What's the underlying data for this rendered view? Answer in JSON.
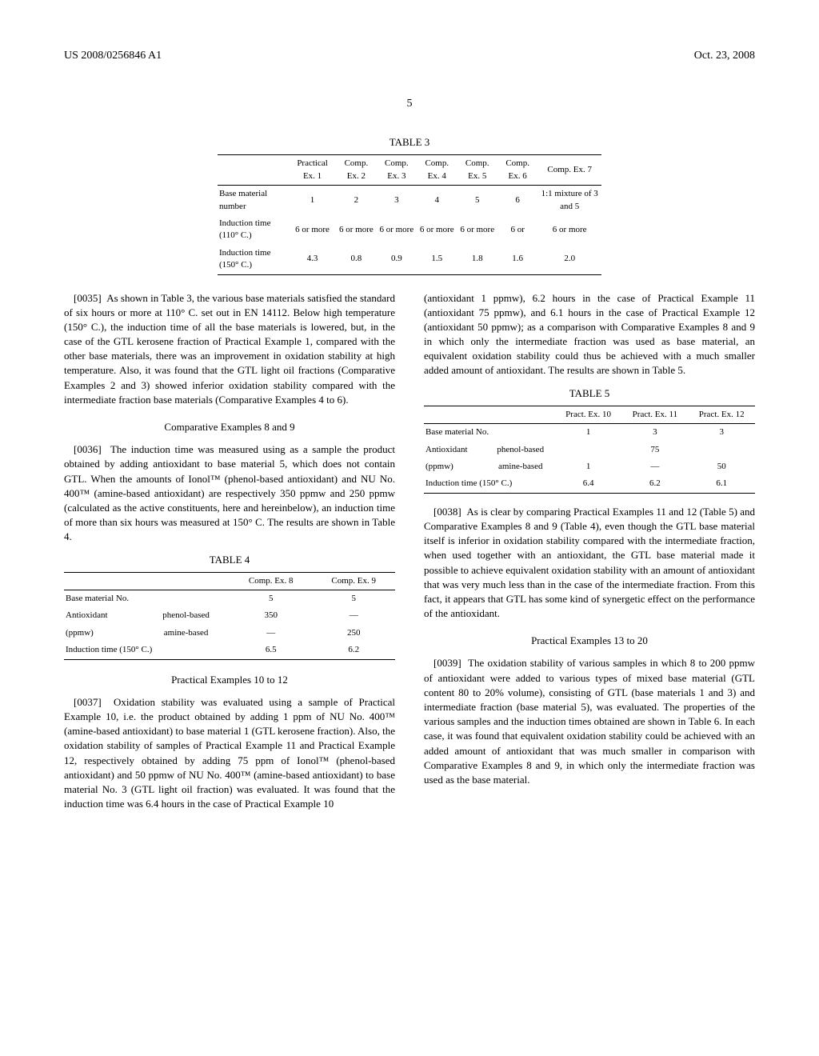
{
  "header": {
    "left": "US 2008/0256846 A1",
    "right": "Oct. 23, 2008"
  },
  "page_number": "5",
  "table3": {
    "title": "TABLE 3",
    "cols": [
      "",
      "Practical Ex. 1",
      "Comp. Ex. 2",
      "Comp. Ex. 3",
      "Comp. Ex. 4",
      "Comp. Ex. 5",
      "Comp. Ex. 6",
      "Comp. Ex. 7"
    ],
    "rows": [
      [
        "Base material number",
        "1",
        "2",
        "3",
        "4",
        "5",
        "6",
        "1:1 mixture of 3 and 5"
      ],
      [
        "Induction time (110° C.)",
        "6 or more",
        "6 or more",
        "6 or more",
        "6 or more",
        "6 or more",
        "6 or",
        "6 or more"
      ],
      [
        "Induction time (150° C.)",
        "4.3",
        "0.8",
        "0.9",
        "1.5",
        "1.8",
        "1.6",
        "2.0"
      ]
    ]
  },
  "p0035": {
    "num": "[0035]",
    "text": "As shown in Table 3, the various base materials satisfied the standard of six hours or more at 110° C. set out in EN 14112. Below high temperature (150° C.), the induction time of all the base materials is lowered, but, in the case of the GTL kerosene fraction of Practical Example 1, compared with the other base materials, there was an improvement in oxidation stability at high temperature. Also, it was found that the GTL light oil fractions (Comparative Examples 2 and 3) showed inferior oxidation stability compared with the intermediate fraction base materials (Comparative Examples 4 to 6)."
  },
  "sec_comp89": "Comparative Examples 8 and 9",
  "p0036": {
    "num": "[0036]",
    "text": "The induction time was measured using as a sample the product obtained by adding antioxidant to base material 5, which does not contain GTL. When the amounts of Ionol™ (phenol-based antioxidant) and NU No. 400™ (amine-based antioxidant) are respectively 350 ppmw and 250 ppmw (calculated as the active constituents, here and hereinbelow), an induction time of more than six hours was measured at 150° C. The results are shown in Table 4."
  },
  "table4": {
    "title": "TABLE 4",
    "cols": [
      "",
      "",
      "Comp. Ex. 8",
      "Comp. Ex. 9"
    ],
    "rows": [
      [
        "Base material No.",
        "",
        "5",
        "5"
      ],
      [
        "Antioxidant",
        "phenol-based",
        "350",
        "—"
      ],
      [
        "(ppmw)",
        "amine-based",
        "—",
        "250"
      ],
      [
        "Induction time (150° C.)",
        "",
        "6.5",
        "6.2"
      ]
    ]
  },
  "sec_pr10_12": "Practical Examples 10 to 12",
  "p0037": {
    "num": "[0037]",
    "text": "Oxidation stability was evaluated using a sample of Practical Example 10, i.e. the product obtained by adding 1 ppm of NU No. 400™ (amine-based antioxidant) to base material 1 (GTL kerosene fraction). Also, the oxidation stability of samples of Practical Example 11 and Practical Example 12, respectively obtained by adding 75 ppm of Ionol™ (phenol-based antioxidant) and 50 ppmw of NU No. 400™ (amine-based antioxidant) to base material No. 3 (GTL light oil fraction) was evaluated. It was found that the induction time was 6.4 hours in the case of Practical Example 10"
  },
  "p0037b": "(antioxidant 1 ppmw), 6.2 hours in the case of Practical Example 11 (antioxidant 75 ppmw), and 6.1 hours in the case of Practical Example 12 (antioxidant 50 ppmw); as a comparison with Comparative Examples 8 and 9 in which only the intermediate fraction was used as base material, an equivalent oxidation stability could thus be achieved with a much smaller added amount of antioxidant. The results are shown in Table 5.",
  "table5": {
    "title": "TABLE 5",
    "cols": [
      "",
      "",
      "Pract. Ex. 10",
      "Pract. Ex. 11",
      "Pract. Ex. 12"
    ],
    "rows": [
      [
        "Base material No.",
        "",
        "1",
        "3",
        "3"
      ],
      [
        "Antioxidant",
        "phenol-based",
        "",
        "75",
        ""
      ],
      [
        "(ppmw)",
        "amine-based",
        "1",
        "—",
        "50"
      ],
      [
        "Induction time (150° C.)",
        "",
        "6.4",
        "6.2",
        "6.1"
      ]
    ]
  },
  "p0038": {
    "num": "[0038]",
    "text": "As is clear by comparing Practical Examples 11 and 12 (Table 5) and Comparative Examples 8 and 9 (Table 4), even though the GTL base material itself is inferior in oxidation stability compared with the intermediate fraction, when used together with an antioxidant, the GTL base material made it possible to achieve equivalent oxidation stability with an amount of antioxidant that was very much less than in the case of the intermediate fraction. From this fact, it appears that GTL has some kind of synergetic effect on the performance of the antioxidant."
  },
  "sec_pr13_20": "Practical Examples 13 to 20",
  "p0039": {
    "num": "[0039]",
    "text": "The oxidation stability of various samples in which 8 to 200 ppmw of antioxidant were added to various types of mixed base material (GTL content 80 to 20% volume), consisting of GTL (base materials 1 and 3) and intermediate fraction (base material 5), was evaluated. The properties of the various samples and the induction times obtained are shown in Table 6. In each case, it was found that equivalent oxidation stability could be achieved with an added amount of antioxidant that was much smaller in comparison with Comparative Examples 8 and 9, in which only the intermediate fraction was used as the base material."
  }
}
